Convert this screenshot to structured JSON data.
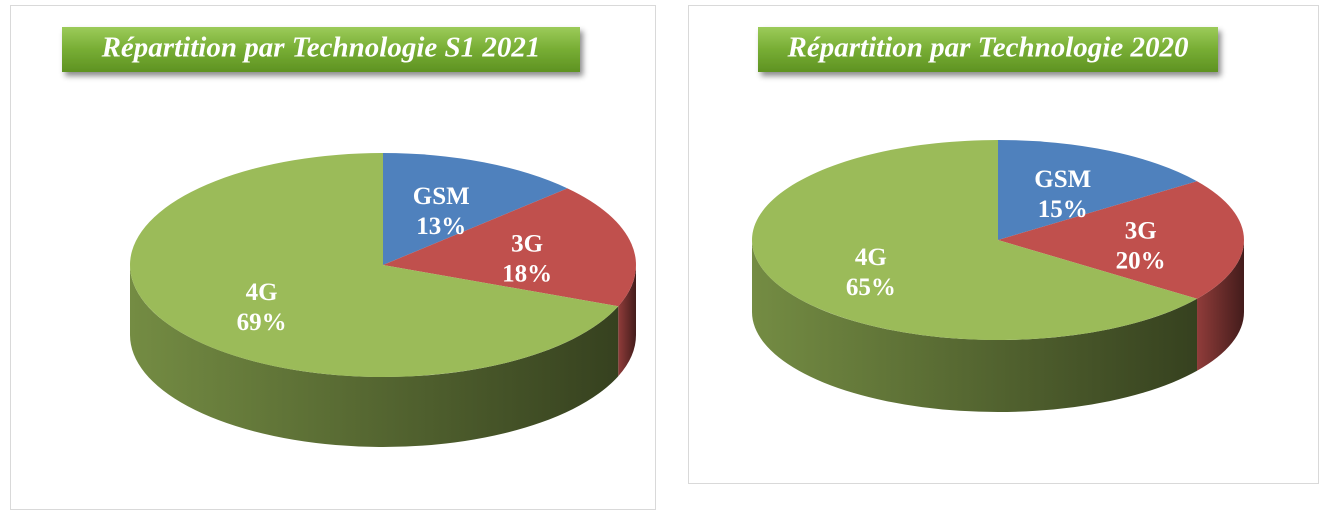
{
  "chart_data": [
    {
      "type": "pie",
      "title": "Répartition par Technologie S1 2021",
      "categories": [
        "GSM",
        "3G",
        "4G"
      ],
      "values": [
        13,
        18,
        69
      ],
      "value_labels": [
        "13%",
        "18%",
        "69%"
      ],
      "colors": [
        "#4f81bd",
        "#c0504d",
        "#9bbb59"
      ]
    },
    {
      "type": "pie",
      "title": "Répartition par Technologie 2020",
      "categories": [
        "GSM",
        "3G",
        "4G"
      ],
      "values": [
        15,
        20,
        65
      ],
      "value_labels": [
        "15%",
        "20%",
        "65%"
      ],
      "colors": [
        "#4f81bd",
        "#c0504d",
        "#9bbb59"
      ]
    }
  ]
}
